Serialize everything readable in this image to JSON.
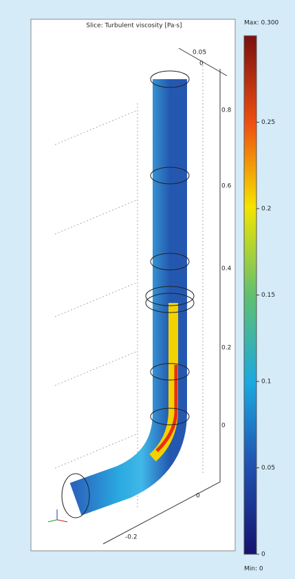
{
  "title": "Slice: Turbulent viscosity [Pa·s]",
  "colorbar": {
    "max_label": "Max: 0.300",
    "min_label": "Min: 0",
    "range": [
      0,
      0.3
    ],
    "ticks": [
      0,
      0.05,
      0.1,
      0.15,
      0.2,
      0.25
    ]
  },
  "axis_labels": [
    "0.05",
    "0",
    "0.8",
    "0.6",
    "0.4",
    "0.2",
    "0",
    "0",
    "-0.2"
  ]
}
